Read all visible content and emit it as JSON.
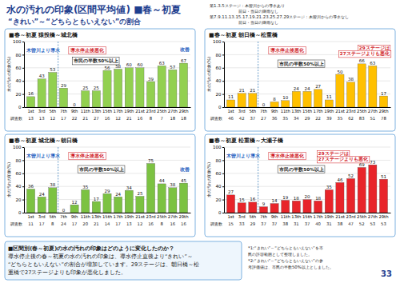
{
  "page": {
    "title": "水の汚れの印象(区間平均値) ■春～初夏",
    "subtitle": "“きれい”～“どちらともいえない”の割合",
    "notes": [
      "第1.3.5ステージ：木曽川からの導水あり",
      "前日・当日の降雨なし",
      "第7.9.11.13.15.17.19.21.23.25.27.29ステージ：木曽川からの導水なし",
      "前日・当日の降雨なし"
    ],
    "summary": [
      "■区間別(春～初夏)の水の汚れの印象はどのように変化したのか？",
      "導水停止後の春～初夏の水の汚れの印象は、導水停止直後より“きれい”～",
      "“どちらともいえない”の割合が増加しています。29ステージは、朝日橋～松",
      "重橋で27ステージよりも印象が悪化しました。"
    ],
    "footnotes": [
      "*1:“きれい”～“どちらともいえない”を市",
      "民の許容範囲として整理しました。",
      "*2:“きれい”～“どちらともいえない”の参",
      "考評価値は、市民の半数50%以上としました。"
    ],
    "page_number": 33
  },
  "chart_data": [
    {
      "type": "bar",
      "title": "■春～初夏 猿投橋～城北橋",
      "y_label": "水の汚れの印象(%)",
      "categories": [
        "1st",
        "3rd",
        "5th",
        "7th",
        "9th",
        "11th",
        "13th",
        "15th",
        "17th",
        "19th",
        "21st",
        "23rd",
        "25th",
        "27th",
        "29th"
      ],
      "values": [
        16,
        43,
        53,
        29,
        0,
        25,
        25,
        56,
        58,
        60,
        60,
        39,
        63,
        57,
        67
      ],
      "color": "#92d050",
      "ylim": [
        0,
        100
      ],
      "yticks": [
        0,
        20,
        40,
        60,
        80,
        100
      ],
      "grid": true,
      "data_labels": true,
      "survey_label": "調査数",
      "survey_counts": [
        13,
        13,
        12,
        17,
        22,
        21,
        27,
        16,
        12,
        21,
        16,
        8,
        7,
        18,
        18
      ],
      "annotations": [
        "木曽川より導水",
        "導水停止後悪化",
        "市民の半数50%以上",
        "改善"
      ]
    },
    {
      "type": "bar",
      "title": "■春～初夏 朝日橋～松重橋",
      "y_label": "水の汚れの印象(%)",
      "categories": [
        "1st",
        "3rd",
        "5th",
        "7th",
        "9th",
        "11th",
        "13th",
        "15th",
        "17th",
        "19th",
        "21st",
        "23rd",
        "25th",
        "27th",
        "29th"
      ],
      "values": [
        11,
        21,
        21,
        0,
        8,
        10,
        24,
        24,
        27,
        11,
        50,
        38,
        66,
        63,
        17
      ],
      "color": "#ffc000",
      "ylim": [
        0,
        100
      ],
      "yticks": [
        0,
        20,
        40,
        60,
        80,
        100
      ],
      "grid": true,
      "data_labels": true,
      "survey_label": "調査数",
      "survey_counts": [
        46,
        42,
        37,
        27,
        36,
        35,
        34,
        29,
        22,
        39,
        35,
        62,
        83,
        51,
        78
      ],
      "annotations": [
        "導水停止後悪化",
        "市民の半数50%以上",
        "29ステージは",
        "27ステージよりも悪化"
      ]
    },
    {
      "type": "bar",
      "title": "■春～初夏 城北橋～朝日橋",
      "y_label": "水の汚れの印象(%)",
      "categories": [
        "1st",
        "3rd",
        "5th",
        "7th",
        "9th",
        "11th",
        "13th",
        "15th",
        "17th",
        "19th",
        "21st",
        "23rd",
        "25th",
        "27th",
        "29th"
      ],
      "values": [
        36,
        24,
        38,
        0,
        12,
        35,
        17,
        29,
        24,
        34,
        25,
        75,
        44,
        38,
        45
      ],
      "color": "#7cc242",
      "ylim": [
        0,
        100
      ],
      "yticks": [
        0,
        20,
        40,
        60,
        80,
        100
      ],
      "grid": true,
      "data_labels": true,
      "survey_label": "調査数",
      "survey_counts": [
        11,
        17,
        8,
        24,
        17,
        20,
        21,
        14,
        17,
        13,
        12,
        16,
        8,
        16,
        16
      ],
      "annotations": [
        "木曽川より導水",
        "導水停止後悪化",
        "市民の半数50%以上",
        "改善"
      ]
    },
    {
      "type": "bar",
      "title": "■春～初夏 松重橋～大瀬子橋",
      "y_label": "水の汚れの印象(%)",
      "categories": [
        "1st",
        "3rd",
        "5th",
        "7th",
        "9th",
        "11th",
        "13th",
        "15th",
        "17th",
        "19th",
        "21st",
        "23rd",
        "25th",
        "27th",
        "29th"
      ],
      "values": [
        27,
        15,
        16,
        9,
        14,
        19,
        18,
        20,
        18,
        35,
        46,
        52,
        69,
        73,
        51
      ],
      "color": "#e8242a",
      "ylim": [
        0,
        100
      ],
      "yticks": [
        0,
        20,
        40,
        60,
        80,
        100
      ],
      "grid": true,
      "data_labels": true,
      "survey_label": "調査数",
      "survey_counts": [
        15,
        33,
        29,
        37,
        37,
        38,
        31,
        37,
        40,
        31,
        38,
        47,
        52,
        53,
        53
      ],
      "annotations": [
        "木曽川より導水",
        "導水停止後悪化",
        "市民の半数50%以上",
        "29ステージは",
        "27ステージよりも悪化"
      ]
    }
  ]
}
